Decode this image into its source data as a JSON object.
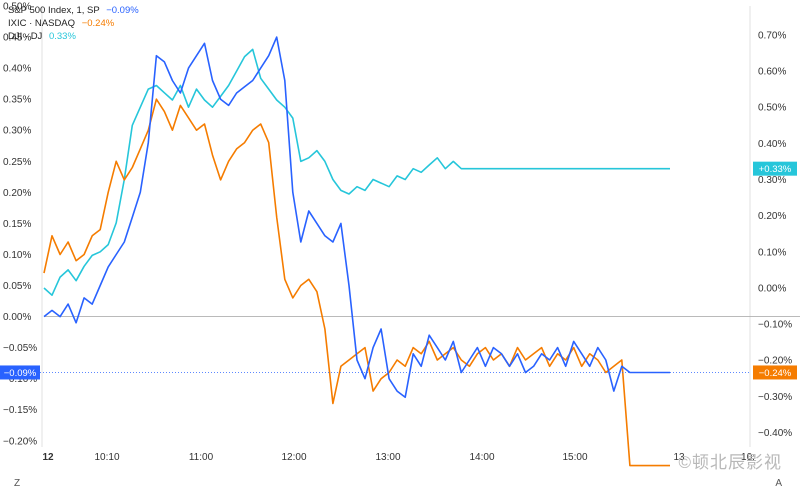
{
  "legend": [
    {
      "name": "S&P 500 Index, 1, SP",
      "value": "−0.09%",
      "color": "#2962ff"
    },
    {
      "name": "IXIC · NASDAQ",
      "value": "−0.24%",
      "color": "#f57c00"
    },
    {
      "name": "DJI · DJ",
      "value": "0.33%",
      "color": "#26c6da"
    }
  ],
  "badges": {
    "sp": "−0.09%",
    "ixic": "−0.24%",
    "dji": "+0.33%"
  },
  "corner_left": "Z",
  "corner_right": "A",
  "watermark": "©顿北辰影视",
  "chart_data": {
    "type": "line",
    "x_ticks": [
      "12",
      "10:10",
      "11:00",
      "12:00",
      "13:00",
      "14:00",
      "15:00",
      "13",
      "10:"
    ],
    "left_axis": {
      "ticks": [
        "0.50%",
        "0.45%",
        "0.40%",
        "0.35%",
        "0.30%",
        "0.25%",
        "0.20%",
        "0.15%",
        "0.10%",
        "0.05%",
        "0.00%",
        "−0.05%",
        "−0.10%",
        "−0.15%",
        "−0.20%"
      ],
      "range": [
        -0.21,
        0.5
      ]
    },
    "right_axis": {
      "ticks": [
        "0.70%",
        "0.60%",
        "0.50%",
        "0.40%",
        "0.30%",
        "0.20%",
        "0.10%",
        "0.00%",
        "−0.10%",
        "−0.20%",
        "−0.30%",
        "−0.40%"
      ],
      "range": [
        -0.44,
        0.78
      ]
    },
    "x": [
      0,
      5,
      10,
      15,
      20,
      25,
      30,
      35,
      40,
      45,
      50,
      55,
      60,
      65,
      70,
      75,
      80,
      85,
      90,
      95,
      100,
      105,
      110,
      115,
      120,
      125,
      130,
      135,
      140,
      145,
      150,
      155,
      160,
      165,
      170,
      175,
      180,
      185,
      190,
      195,
      200,
      205,
      210,
      215,
      220,
      225,
      230,
      235,
      240,
      245,
      250,
      255,
      260,
      265,
      270,
      275,
      280,
      285,
      290,
      295,
      300,
      305,
      310,
      315,
      320,
      325,
      330,
      335,
      340,
      345,
      350,
      355,
      360,
      365,
      370,
      375,
      380,
      385,
      390
    ],
    "series": [
      {
        "name": "S&P 500 Index, 1, SP",
        "axis": "left",
        "color": "#2962ff",
        "values": [
          0.0,
          0.01,
          0.0,
          0.02,
          -0.01,
          0.03,
          0.02,
          0.05,
          0.08,
          0.1,
          0.12,
          0.16,
          0.2,
          0.28,
          0.42,
          0.41,
          0.38,
          0.36,
          0.4,
          0.42,
          0.44,
          0.38,
          0.35,
          0.34,
          0.36,
          0.37,
          0.38,
          0.4,
          0.42,
          0.45,
          0.38,
          0.2,
          0.12,
          0.17,
          0.15,
          0.13,
          0.12,
          0.15,
          0.05,
          -0.07,
          -0.1,
          -0.05,
          -0.02,
          -0.1,
          -0.12,
          -0.13,
          -0.06,
          -0.08,
          -0.03,
          -0.05,
          -0.07,
          -0.04,
          -0.09,
          -0.07,
          -0.05,
          -0.08,
          -0.05,
          -0.06,
          -0.08,
          -0.06,
          -0.09,
          -0.08,
          -0.06,
          -0.07,
          -0.05,
          -0.08,
          -0.04,
          -0.06,
          -0.08,
          -0.05,
          -0.07,
          -0.12,
          -0.08,
          -0.09,
          -0.09,
          -0.09,
          -0.09,
          -0.09,
          -0.09
        ]
      },
      {
        "name": "IXIC · NASDAQ",
        "axis": "left",
        "color": "#f57c00",
        "values": [
          0.07,
          0.13,
          0.1,
          0.12,
          0.09,
          0.1,
          0.13,
          0.14,
          0.2,
          0.25,
          0.22,
          0.24,
          0.27,
          0.3,
          0.35,
          0.33,
          0.3,
          0.34,
          0.32,
          0.3,
          0.31,
          0.26,
          0.22,
          0.25,
          0.27,
          0.28,
          0.3,
          0.31,
          0.28,
          0.16,
          0.06,
          0.03,
          0.05,
          0.06,
          0.04,
          -0.02,
          -0.14,
          -0.08,
          -0.07,
          -0.06,
          -0.05,
          -0.12,
          -0.1,
          -0.09,
          -0.07,
          -0.08,
          -0.05,
          -0.06,
          -0.04,
          -0.07,
          -0.06,
          -0.05,
          -0.07,
          -0.08,
          -0.06,
          -0.05,
          -0.07,
          -0.06,
          -0.08,
          -0.05,
          -0.07,
          -0.06,
          -0.05,
          -0.08,
          -0.06,
          -0.07,
          -0.05,
          -0.08,
          -0.06,
          -0.07,
          -0.09,
          -0.08,
          -0.07,
          -0.24,
          -0.24,
          -0.24,
          -0.24,
          -0.24,
          -0.24
        ]
      },
      {
        "name": "DJI · DJ",
        "axis": "right",
        "color": "#26c6da",
        "values": [
          0.0,
          -0.02,
          0.03,
          0.05,
          0.02,
          0.06,
          0.09,
          0.1,
          0.12,
          0.18,
          0.3,
          0.45,
          0.5,
          0.55,
          0.56,
          0.54,
          0.52,
          0.56,
          0.5,
          0.55,
          0.52,
          0.5,
          0.53,
          0.56,
          0.6,
          0.64,
          0.66,
          0.58,
          0.55,
          0.52,
          0.5,
          0.47,
          0.35,
          0.36,
          0.38,
          0.35,
          0.3,
          0.27,
          0.26,
          0.28,
          0.27,
          0.3,
          0.29,
          0.28,
          0.31,
          0.3,
          0.33,
          0.32,
          0.34,
          0.36,
          0.33,
          0.35,
          0.33,
          0.33,
          0.33,
          0.33,
          0.33,
          0.33,
          0.33,
          0.33,
          0.33,
          0.33,
          0.33,
          0.33,
          0.33,
          0.33,
          0.33,
          0.33,
          0.33,
          0.33,
          0.33,
          0.33,
          0.33,
          0.33,
          0.33,
          0.33,
          0.33,
          0.33,
          0.33
        ]
      }
    ]
  }
}
